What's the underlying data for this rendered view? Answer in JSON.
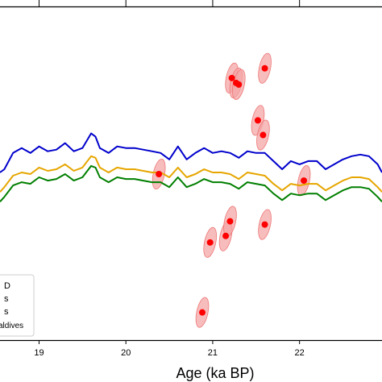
{
  "chart_data": {
    "type": "line",
    "xlabel": "Age (ka BP)",
    "xlim": [
      18.55,
      22.95
    ],
    "x_ticks": [
      19,
      20,
      21,
      22
    ],
    "legend": {
      "position": "lower-left",
      "entries": [
        "D",
        "s",
        "s",
        "aldives"
      ]
    },
    "series": [
      {
        "color": "#0000cc",
        "x": [
          18.55,
          18.6,
          18.7,
          18.8,
          18.9,
          19.0,
          19.1,
          19.2,
          19.3,
          19.4,
          19.5,
          19.6,
          19.65,
          19.7,
          19.8,
          19.9,
          20.0,
          20.1,
          20.2,
          20.3,
          20.4,
          20.5,
          20.6,
          20.7,
          20.8,
          20.9,
          21.0,
          21.1,
          21.2,
          21.3,
          21.4,
          21.5,
          21.6,
          21.7,
          21.8,
          21.9,
          22.0,
          22.1,
          22.2,
          22.3,
          22.4,
          22.5,
          22.6,
          22.7,
          22.8,
          22.9,
          22.95
        ],
        "y": [
          0.48,
          0.5,
          0.6,
          0.63,
          0.6,
          0.64,
          0.61,
          0.62,
          0.66,
          0.61,
          0.63,
          0.72,
          0.7,
          0.63,
          0.6,
          0.64,
          0.63,
          0.63,
          0.62,
          0.61,
          0.6,
          0.56,
          0.64,
          0.56,
          0.6,
          0.63,
          0.6,
          0.61,
          0.6,
          0.57,
          0.61,
          0.6,
          0.6,
          0.55,
          0.5,
          0.55,
          0.53,
          0.55,
          0.55,
          0.5,
          0.53,
          0.56,
          0.58,
          0.59,
          0.58,
          0.53,
          0.48
        ]
      },
      {
        "color": "#e6a600",
        "x": [
          18.55,
          18.6,
          18.7,
          18.8,
          18.9,
          19.0,
          19.1,
          19.2,
          19.3,
          19.4,
          19.5,
          19.6,
          19.65,
          19.7,
          19.8,
          19.9,
          20.0,
          20.1,
          20.2,
          20.3,
          20.4,
          20.5,
          20.6,
          20.7,
          20.8,
          20.9,
          21.0,
          21.1,
          21.2,
          21.3,
          21.4,
          21.5,
          21.6,
          21.7,
          21.8,
          21.9,
          22.0,
          22.1,
          22.2,
          22.3,
          22.4,
          22.5,
          22.6,
          22.7,
          22.8,
          22.9,
          22.95
        ],
        "y": [
          0.36,
          0.39,
          0.46,
          0.48,
          0.47,
          0.51,
          0.49,
          0.5,
          0.53,
          0.49,
          0.51,
          0.58,
          0.57,
          0.51,
          0.48,
          0.51,
          0.5,
          0.5,
          0.49,
          0.48,
          0.48,
          0.45,
          0.51,
          0.45,
          0.47,
          0.5,
          0.48,
          0.48,
          0.47,
          0.44,
          0.48,
          0.47,
          0.46,
          0.41,
          0.37,
          0.41,
          0.4,
          0.41,
          0.41,
          0.37,
          0.4,
          0.43,
          0.45,
          0.45,
          0.44,
          0.39,
          0.36
        ]
      },
      {
        "color": "#007f00",
        "x": [
          18.55,
          18.6,
          18.7,
          18.8,
          18.9,
          19.0,
          19.1,
          19.2,
          19.3,
          19.4,
          19.5,
          19.6,
          19.65,
          19.7,
          19.8,
          19.9,
          20.0,
          20.1,
          20.2,
          20.3,
          20.4,
          20.5,
          20.6,
          20.7,
          20.8,
          20.9,
          21.0,
          21.1,
          21.2,
          21.3,
          21.4,
          21.5,
          21.6,
          21.7,
          21.8,
          21.9,
          22.0,
          22.1,
          22.2,
          22.3,
          22.4,
          22.5,
          22.6,
          22.7,
          22.8,
          22.9,
          22.95
        ],
        "y": [
          0.3,
          0.33,
          0.4,
          0.42,
          0.41,
          0.45,
          0.43,
          0.44,
          0.47,
          0.43,
          0.45,
          0.52,
          0.51,
          0.45,
          0.42,
          0.45,
          0.44,
          0.44,
          0.43,
          0.42,
          0.42,
          0.39,
          0.45,
          0.39,
          0.41,
          0.44,
          0.42,
          0.42,
          0.41,
          0.38,
          0.42,
          0.41,
          0.4,
          0.35,
          0.31,
          0.35,
          0.34,
          0.35,
          0.35,
          0.31,
          0.34,
          0.37,
          0.39,
          0.39,
          0.38,
          0.33,
          0.3
        ]
      }
    ],
    "scatter": {
      "color": "#ff0000",
      "ellipse_color": "#f4a6a6",
      "points": [
        {
          "x": 20.38,
          "y": 0.47
        },
        {
          "x": 20.88,
          "y": -0.38
        },
        {
          "x": 20.97,
          "y": 0.05
        },
        {
          "x": 21.15,
          "y": 0.09
        },
        {
          "x": 21.2,
          "y": 0.18
        },
        {
          "x": 21.22,
          "y": 1.06
        },
        {
          "x": 21.27,
          "y": 1.03
        },
        {
          "x": 21.3,
          "y": 1.02
        },
        {
          "x": 21.52,
          "y": 0.8
        },
        {
          "x": 21.58,
          "y": 0.71
        },
        {
          "x": 21.6,
          "y": 0.16
        },
        {
          "x": 21.6,
          "y": 1.12
        },
        {
          "x": 22.05,
          "y": 0.43
        }
      ]
    }
  }
}
